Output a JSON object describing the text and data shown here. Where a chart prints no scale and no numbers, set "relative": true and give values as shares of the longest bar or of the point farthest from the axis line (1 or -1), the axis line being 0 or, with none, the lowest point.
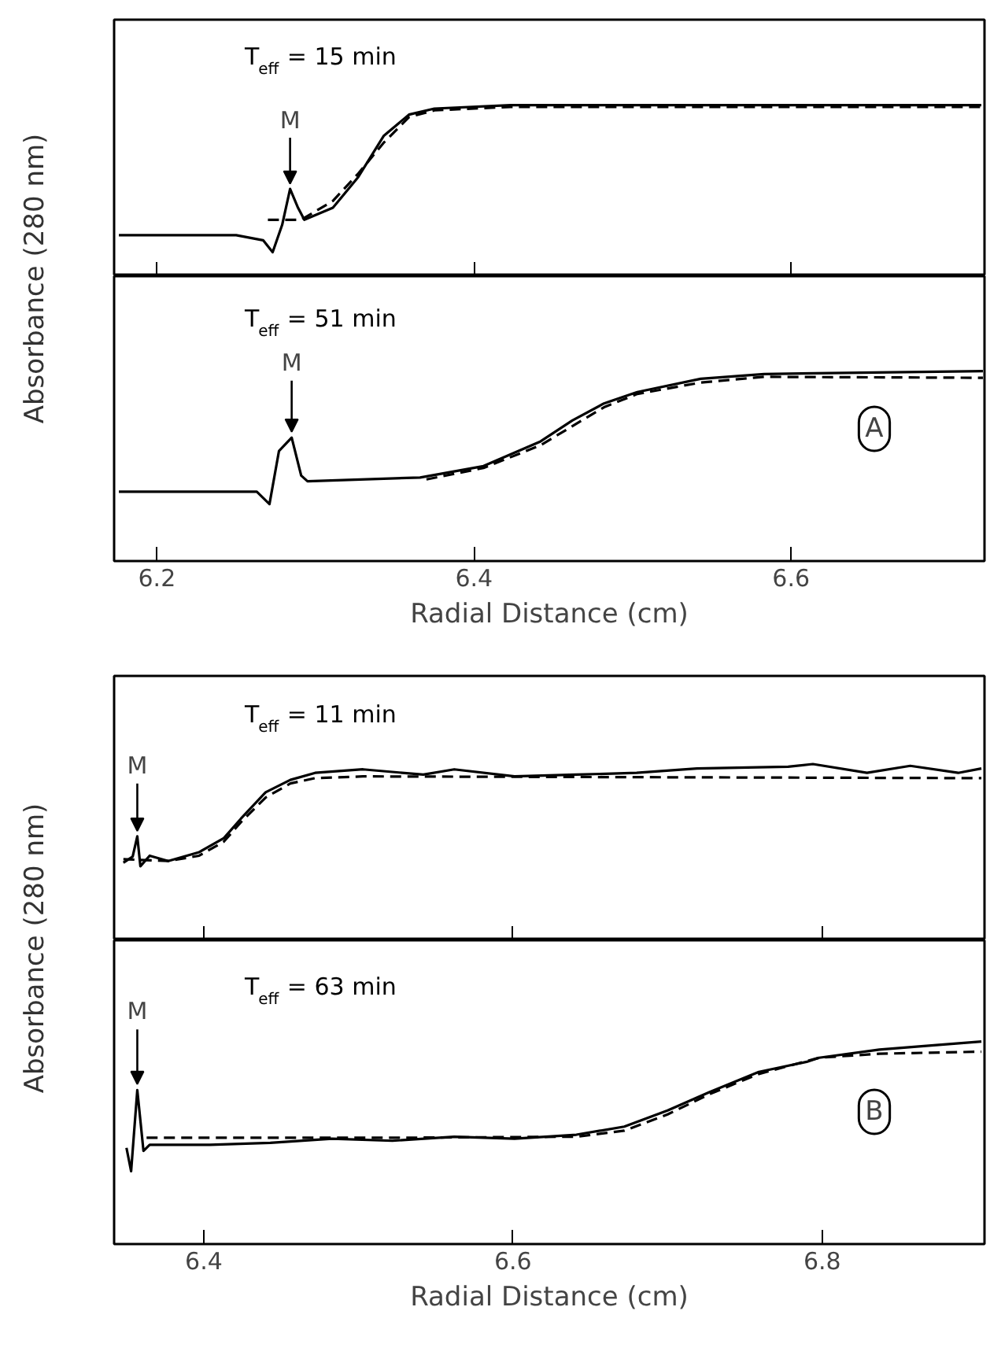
{
  "chart_data": [
    {
      "type": "line",
      "title": "T$_{eff}$= 15 min",
      "relative": true,
      "xlim": [
        6.173,
        6.722
      ],
      "xticks": [
        6.2,
        6.4,
        6.6
      ],
      "tick_labels": false,
      "ylabel": "Absorbance (280 nm)",
      "annotations": [
        {
          "text": "M",
          "x": 6.284,
          "y": 0.51
        }
      ],
      "series": [
        {
          "color": "#000000",
          "line_style": "solid",
          "x": [
            6.176,
            6.25,
            6.267,
            6.273,
            6.279,
            6.284,
            6.289,
            6.293,
            6.311,
            6.327,
            6.343,
            6.359,
            6.375,
            6.423,
            6.583,
            6.72
          ],
          "values": [
            0.24,
            0.24,
            0.21,
            0.14,
            0.3,
            0.51,
            0.4,
            0.33,
            0.4,
            0.58,
            0.82,
            0.945,
            0.98,
            1.0,
            1.0,
            1.0
          ]
        },
        {
          "color": "#000000",
          "line_style": "dashed",
          "x": [
            6.27,
            6.291,
            6.311,
            6.327,
            6.343,
            6.359,
            6.375,
            6.423,
            6.72
          ],
          "values": [
            0.33,
            0.33,
            0.44,
            0.6,
            0.78,
            0.93,
            0.97,
            0.99,
            0.99
          ]
        }
      ]
    },
    {
      "type": "line",
      "title": "T$_{eff}$ = 51 min",
      "relative": true,
      "xlim": [
        6.173,
        6.722
      ],
      "xticks": [
        6.2,
        6.4,
        6.6
      ],
      "tick_labels": "x",
      "xlabel": "Radial Distance (cm)",
      "annotations": [
        {
          "text": "M",
          "x": 6.285,
          "y": 0.65
        },
        "A"
      ],
      "series": [
        {
          "color": "#000000",
          "line_style": "solid",
          "x": [
            6.176,
            6.263,
            6.271,
            6.277,
            6.285,
            6.291,
            6.295,
            6.366,
            6.406,
            6.442,
            6.462,
            6.482,
            6.503,
            6.543,
            6.583,
            6.721
          ],
          "values": [
            0.365,
            0.365,
            0.3,
            0.58,
            0.65,
            0.45,
            0.42,
            0.44,
            0.5,
            0.63,
            0.74,
            0.83,
            0.89,
            0.96,
            0.985,
            1.0
          ]
        },
        {
          "color": "#000000",
          "line_style": "dashed",
          "x": [
            6.37,
            6.406,
            6.442,
            6.462,
            6.482,
            6.503,
            6.543,
            6.583,
            6.721
          ],
          "values": [
            0.43,
            0.49,
            0.61,
            0.71,
            0.81,
            0.88,
            0.94,
            0.97,
            0.965
          ]
        }
      ]
    },
    {
      "type": "line",
      "title": "T$_{eff}$ = 11 min",
      "relative": true,
      "xlim": [
        6.342,
        6.905
      ],
      "xticks": [
        6.4,
        6.6,
        6.8
      ],
      "tick_labels": false,
      "ylabel": "Absorbance (280 nm)",
      "annotations": [
        {
          "text": "M",
          "x": 6.357,
          "y": 0.59
        }
      ],
      "series": [
        {
          "color": "#000000",
          "line_style": "solid",
          "x": [
            6.348,
            6.354,
            6.357,
            6.359,
            6.365,
            6.377,
            6.397,
            6.413,
            6.424,
            6.44,
            6.456,
            6.472,
            6.503,
            6.542,
            6.562,
            6.601,
            6.641,
            6.68,
            6.719,
            6.778,
            6.794,
            6.829,
            6.857,
            6.888,
            6.903
          ],
          "values": [
            0.44,
            0.475,
            0.59,
            0.42,
            0.48,
            0.45,
            0.5,
            0.58,
            0.69,
            0.84,
            0.91,
            0.95,
            0.97,
            0.94,
            0.97,
            0.93,
            0.94,
            0.95,
            0.975,
            0.985,
            1.0,
            0.95,
            0.99,
            0.95,
            0.975
          ]
        },
        {
          "color": "#000000",
          "line_style": "dashed",
          "x": [
            6.348,
            6.377,
            6.397,
            6.413,
            6.424,
            6.44,
            6.456,
            6.472,
            6.503,
            6.903
          ],
          "values": [
            0.46,
            0.45,
            0.48,
            0.56,
            0.67,
            0.81,
            0.89,
            0.92,
            0.93,
            0.92
          ]
        }
      ]
    },
    {
      "type": "line",
      "title": "T$_{eff}$= 63 min",
      "relative": true,
      "xlim": [
        6.342,
        6.905
      ],
      "xticks": [
        6.4,
        6.6,
        6.8
      ],
      "tick_labels": "x",
      "xlabel": "Radial Distance (cm)",
      "annotations": [
        {
          "text": "M",
          "x": 6.357,
          "y": 0.76
        },
        "B"
      ],
      "series": [
        {
          "color": "#000000",
          "line_style": "solid",
          "x": [
            6.35,
            6.353,
            6.357,
            6.361,
            6.365,
            6.404,
            6.443,
            6.483,
            6.522,
            6.562,
            6.601,
            6.641,
            6.672,
            6.7,
            6.727,
            6.759,
            6.79,
            6.798,
            6.837,
            6.869,
            6.903
          ],
          "values": [
            0.475,
            0.36,
            0.76,
            0.46,
            0.49,
            0.49,
            0.5,
            0.52,
            0.51,
            0.53,
            0.52,
            0.54,
            0.58,
            0.66,
            0.75,
            0.85,
            0.9,
            0.92,
            0.96,
            0.98,
            1.0
          ]
        },
        {
          "color": "#000000",
          "line_style": "dashed",
          "x": [
            6.363,
            6.443,
            6.522,
            6.641,
            6.672,
            6.7,
            6.727,
            6.759,
            6.798,
            6.837,
            6.903
          ],
          "values": [
            0.525,
            0.525,
            0.525,
            0.53,
            0.56,
            0.64,
            0.74,
            0.84,
            0.92,
            0.94,
            0.95
          ]
        }
      ]
    }
  ]
}
